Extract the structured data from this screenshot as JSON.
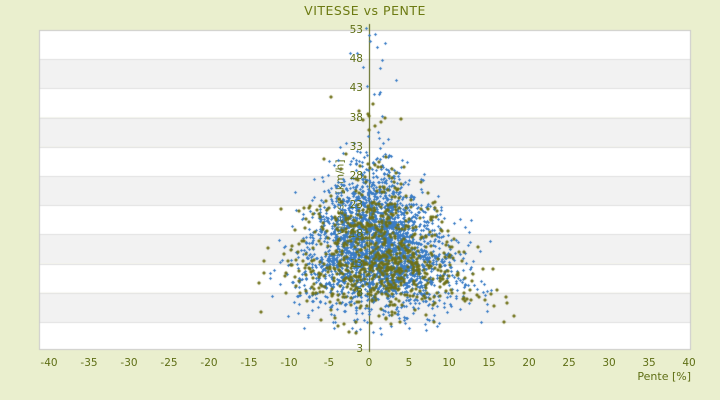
{
  "window": {
    "kind": "chart-panel",
    "background": "#EAEFCE"
  },
  "chart_data": {
    "type": "scatter",
    "title": "VITESSE vs PENTE",
    "xlabel": "Pente [%]",
    "ylabel": "Vitesse [km/h]",
    "x_ticks": [
      -40,
      -35,
      -30,
      -25,
      -20,
      -15,
      -10,
      -5,
      0,
      5,
      10,
      15,
      20,
      25,
      30,
      35,
      40
    ],
    "y_ticks": [
      53,
      48,
      43,
      38,
      33,
      28,
      23,
      18,
      13,
      8,
      3
    ],
    "xlim": [
      -41.3,
      40.3
    ],
    "ylim": [
      -1.8,
      53.1
    ],
    "grid": "horizontal-bands",
    "legend": "none",
    "zero_axis_line": {
      "x": 0,
      "color": "#4D5A08"
    },
    "series": [
      {
        "name": "vitesse-bleu",
        "marker": "plus",
        "color": "#3B7DC6",
        "n": 2700,
        "seed": 1337,
        "y_center": 15.0,
        "y_sd_hi": 6.8,
        "y_sd_lo": 5.0,
        "y_min": 0.8,
        "y_max": 55,
        "x_base_sigma": 1.25,
        "x_sigma_slope": 0.13,
        "x_sigma_ref": 40,
        "x_mu": 0.2,
        "x_mu_slope": 0.08,
        "x_mu_ref": 25,
        "x_min": -14.2,
        "x_max": 15.5,
        "tail": {
          "n": 16,
          "y_min": 42,
          "y_max": 55,
          "x_mu": 0.2,
          "x_sd": 1.3
        }
      },
      {
        "name": "vitesse-olive",
        "marker": "diamond",
        "color": "#6F7117",
        "n": 780,
        "seed": 4242,
        "y_center": 13.5,
        "y_sd_hi": 7.5,
        "y_sd_lo": 4.6,
        "y_min": 0.8,
        "y_max": 46,
        "x_base_sigma": 1.6,
        "x_sigma_slope": 0.16,
        "x_sigma_ref": 38,
        "x_mu": 0.4,
        "x_mu_slope": 0.1,
        "x_mu_ref": 22,
        "x_min": -14.8,
        "x_max": 18.3,
        "tail": {
          "n": 10,
          "y_min": 36,
          "y_max": 44,
          "x_mu": -0.5,
          "x_sd": 2.5
        }
      }
    ],
    "layout_summary": "dense cloud centered near x=0..2%, y=13..18 km/h, narrowing upward to ~53 km/h at slope 0, widening to +/-14% at low speeds"
  },
  "colors": {
    "background": "#EAEFCE",
    "band_white": "#FFFFFF",
    "band_gray": "#F2F2F2",
    "band_line": "#E0E0E0",
    "plot_border": "#C9C9C9",
    "text_olive": "#5E6E14",
    "title_olive": "#6C7A12",
    "axis_line": "#4D5A08",
    "point_blue": "#3B7DC6",
    "point_olive": "#6F7117"
  }
}
